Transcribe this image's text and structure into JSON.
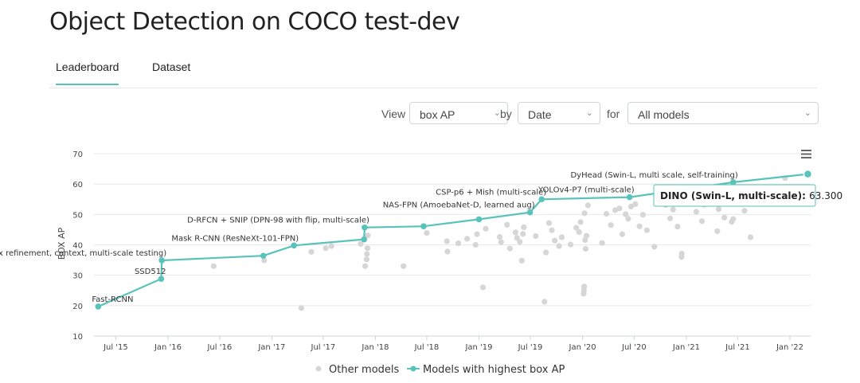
{
  "page": {
    "title": "Object Detection on COCO test-dev",
    "tabs": [
      {
        "label": "Leaderboard",
        "active": true
      },
      {
        "label": "Dataset",
        "active": false
      }
    ]
  },
  "controls": {
    "view_label": "View",
    "view_value": "box AP",
    "by_label": "by",
    "by_value": "Date",
    "for_label": "for",
    "for_value": "All models"
  },
  "colors": {
    "accent": "#59c2bb",
    "other": "#d6d6d6"
  },
  "icons": {
    "menu": "hamburger-menu-icon",
    "select": "chevron-down-icon"
  },
  "chart_data": {
    "type": "scatter",
    "ylabel": "BOX AP",
    "xlabel": "",
    "ylim": [
      10,
      70
    ],
    "yticks": [
      10,
      20,
      30,
      40,
      50,
      60,
      70
    ],
    "xlim": [
      "2015-04-15",
      "2022-03-15"
    ],
    "xticks": [
      {
        "date": "2015-07-01",
        "label": "Jul '15"
      },
      {
        "date": "2016-01-01",
        "label": "Jan '16"
      },
      {
        "date": "2016-07-01",
        "label": "Jul '16"
      },
      {
        "date": "2017-01-01",
        "label": "Jan '17"
      },
      {
        "date": "2017-07-01",
        "label": "Jul '17"
      },
      {
        "date": "2018-01-01",
        "label": "Jan '18"
      },
      {
        "date": "2018-07-01",
        "label": "Jul '18"
      },
      {
        "date": "2019-01-01",
        "label": "Jan '19"
      },
      {
        "date": "2019-07-01",
        "label": "Jul '19"
      },
      {
        "date": "2020-01-01",
        "label": "Jan '20"
      },
      {
        "date": "2020-07-01",
        "label": "Jul '20"
      },
      {
        "date": "2021-01-01",
        "label": "Jan '21"
      },
      {
        "date": "2021-07-01",
        "label": "Jul '21"
      },
      {
        "date": "2022-01-01",
        "label": "Jan '22"
      }
    ],
    "legend": {
      "position": "bottom",
      "items": [
        "Other models",
        "Models with highest box AP"
      ]
    },
    "series": [
      {
        "name": "Models with highest box AP",
        "points": [
          {
            "date": "2015-04-30",
            "y": 19.7,
            "label": "Fast-RCNN"
          },
          {
            "date": "2015-12-08",
            "y": 28.8,
            "label": "SSD512"
          },
          {
            "date": "2015-12-10",
            "y": 34.9,
            "label": "Faster R-CNN (box refinement, context, multi-scale testing)"
          },
          {
            "date": "2016-12-02",
            "y": 36.4,
            "label": ""
          },
          {
            "date": "2017-03-20",
            "y": 39.8,
            "label": "Mask R-CNN (ResNeXt-101-FPN)"
          },
          {
            "date": "2017-11-22",
            "y": 41.8,
            "label": ""
          },
          {
            "date": "2017-11-24",
            "y": 45.7,
            "label": "D-RFCN + SNIP (DPN-98 with flip, multi-scale)"
          },
          {
            "date": "2018-06-20",
            "y": 46.1,
            "label": ""
          },
          {
            "date": "2019-01-01",
            "y": 48.4,
            "label": ""
          },
          {
            "date": "2019-06-30",
            "y": 50.7,
            "label": "NAS-FPN (AmoebaNet-D, learned aug)"
          },
          {
            "date": "2019-08-10",
            "y": 55.0,
            "label": "CSP-p6 + Mish (multi-scale)"
          },
          {
            "date": "2020-06-15",
            "y": 55.7,
            "label": "YOLOv4-P7 (multi-scale)"
          },
          {
            "date": "2021-06-15",
            "y": 60.6,
            "label": "DyHead (Swin-L, multi scale, self-training)"
          },
          {
            "date": "2022-03-05",
            "y": 63.3,
            "label": ""
          }
        ]
      },
      {
        "name": "Other models",
        "points": [
          {
            "date": "2016-06-10",
            "y": 33.0
          },
          {
            "date": "2016-12-05",
            "y": 34.9
          },
          {
            "date": "2017-04-15",
            "y": 19.2
          },
          {
            "date": "2017-05-20",
            "y": 37.7
          },
          {
            "date": "2017-07-10",
            "y": 38.9
          },
          {
            "date": "2017-07-30",
            "y": 39.6
          },
          {
            "date": "2017-11-10",
            "y": 40.3
          },
          {
            "date": "2017-11-26",
            "y": 33.0
          },
          {
            "date": "2017-12-01",
            "y": 35.2
          },
          {
            "date": "2017-12-02",
            "y": 37.0
          },
          {
            "date": "2017-12-04",
            "y": 38.9
          },
          {
            "date": "2017-12-05",
            "y": 43.1
          },
          {
            "date": "2018-04-10",
            "y": 33.0
          },
          {
            "date": "2018-07-01",
            "y": 43.9
          },
          {
            "date": "2018-09-10",
            "y": 41.2
          },
          {
            "date": "2018-09-12",
            "y": 37.8
          },
          {
            "date": "2018-10-20",
            "y": 40.5
          },
          {
            "date": "2018-11-20",
            "y": 42.0
          },
          {
            "date": "2018-12-20",
            "y": 40.0
          },
          {
            "date": "2018-12-25",
            "y": 43.5
          },
          {
            "date": "2019-01-15",
            "y": 26.0
          },
          {
            "date": "2019-01-25",
            "y": 45.3
          },
          {
            "date": "2019-03-15",
            "y": 42.6
          },
          {
            "date": "2019-03-20",
            "y": 40.9
          },
          {
            "date": "2019-04-10",
            "y": 46.6
          },
          {
            "date": "2019-04-20",
            "y": 38.8
          },
          {
            "date": "2019-05-10",
            "y": 44.1
          },
          {
            "date": "2019-05-15",
            "y": 42.3
          },
          {
            "date": "2019-05-25",
            "y": 41.0
          },
          {
            "date": "2019-06-01",
            "y": 34.8
          },
          {
            "date": "2019-06-05",
            "y": 43.6
          },
          {
            "date": "2019-06-08",
            "y": 45.8
          },
          {
            "date": "2019-07-20",
            "y": 42.9
          },
          {
            "date": "2019-08-20",
            "y": 21.3
          },
          {
            "date": "2019-08-25",
            "y": 37.5
          },
          {
            "date": "2019-09-05",
            "y": 47.2
          },
          {
            "date": "2019-09-15",
            "y": 44.8
          },
          {
            "date": "2019-09-25",
            "y": 41.4
          },
          {
            "date": "2019-10-10",
            "y": 39.6
          },
          {
            "date": "2019-10-20",
            "y": 42.5
          },
          {
            "date": "2019-11-20",
            "y": 40.1
          },
          {
            "date": "2019-12-10",
            "y": 45.6
          },
          {
            "date": "2019-12-20",
            "y": 44.2
          },
          {
            "date": "2019-12-25",
            "y": 47.5
          },
          {
            "date": "2020-01-05",
            "y": 23.9
          },
          {
            "date": "2020-01-06",
            "y": 25.1
          },
          {
            "date": "2020-01-07",
            "y": 26.3
          },
          {
            "date": "2020-01-08",
            "y": 50.4
          },
          {
            "date": "2020-01-10",
            "y": 41.6
          },
          {
            "date": "2020-01-12",
            "y": 38.7
          },
          {
            "date": "2020-01-15",
            "y": 43.0
          },
          {
            "date": "2020-01-20",
            "y": 53.0
          },
          {
            "date": "2020-03-10",
            "y": 40.6
          },
          {
            "date": "2020-03-25",
            "y": 50.2
          },
          {
            "date": "2020-04-10",
            "y": 46.5
          },
          {
            "date": "2020-04-25",
            "y": 51.4
          },
          {
            "date": "2020-05-10",
            "y": 52.0
          },
          {
            "date": "2020-05-20",
            "y": 43.5
          },
          {
            "date": "2020-06-01",
            "y": 50.1
          },
          {
            "date": "2020-06-10",
            "y": 48.6
          },
          {
            "date": "2020-06-20",
            "y": 52.6
          },
          {
            "date": "2020-07-05",
            "y": 53.4
          },
          {
            "date": "2020-07-20",
            "y": 46.1
          },
          {
            "date": "2020-08-01",
            "y": 49.9
          },
          {
            "date": "2020-08-15",
            "y": 44.8
          },
          {
            "date": "2020-09-10",
            "y": 39.4
          },
          {
            "date": "2020-09-20",
            "y": 55.2
          },
          {
            "date": "2020-10-10",
            "y": 54.5
          },
          {
            "date": "2020-10-20",
            "y": 53.1
          },
          {
            "date": "2020-11-05",
            "y": 48.7
          },
          {
            "date": "2020-11-15",
            "y": 51.6
          },
          {
            "date": "2020-12-01",
            "y": 46.0
          },
          {
            "date": "2020-12-10",
            "y": 55.9
          },
          {
            "date": "2020-12-15",
            "y": 36.0
          },
          {
            "date": "2020-12-16",
            "y": 37.1
          },
          {
            "date": "2021-02-05",
            "y": 50.9
          },
          {
            "date": "2021-02-25",
            "y": 47.8
          },
          {
            "date": "2021-03-05",
            "y": 53.2
          },
          {
            "date": "2021-04-20",
            "y": 44.5
          },
          {
            "date": "2021-04-25",
            "y": 51.7
          },
          {
            "date": "2021-05-15",
            "y": 49.0
          },
          {
            "date": "2021-06-10",
            "y": 47.6
          },
          {
            "date": "2021-06-15",
            "y": 48.5
          },
          {
            "date": "2021-07-25",
            "y": 51.2
          },
          {
            "date": "2021-08-15",
            "y": 42.5
          },
          {
            "date": "2021-10-10",
            "y": 58.5
          },
          {
            "date": "2021-12-15",
            "y": 62.0
          }
        ]
      }
    ],
    "tooltip": {
      "name": "DINO (Swin-L, multi-scale)",
      "value": "63.300"
    }
  }
}
